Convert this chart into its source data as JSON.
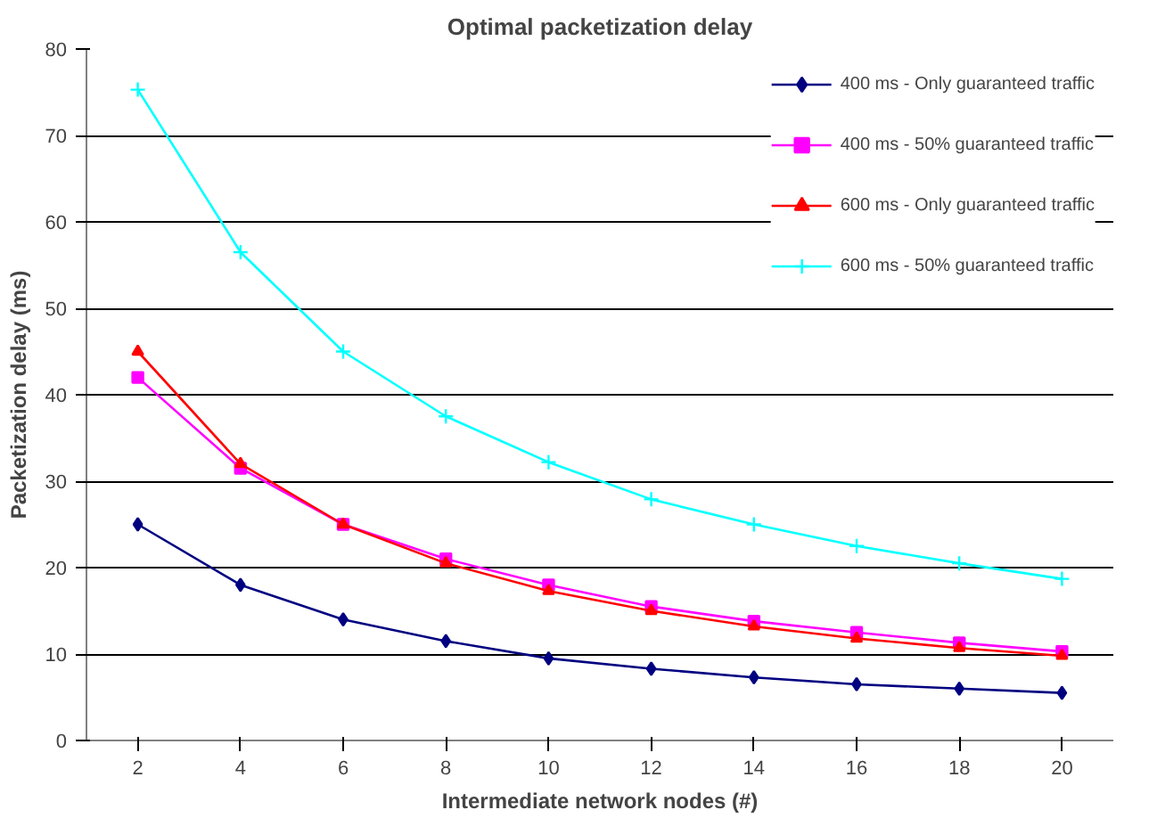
{
  "chart_data": {
    "type": "line",
    "title": "Optimal packetization delay",
    "xlabel": "Intermediate network nodes (#)",
    "ylabel": "Packetization delay (ms)",
    "categories": [
      "2",
      "4",
      "6",
      "8",
      "10",
      "12",
      "14",
      "16",
      "18",
      "20"
    ],
    "ylim": [
      0,
      80
    ],
    "yticks": [
      0,
      10,
      20,
      30,
      40,
      50,
      60,
      70,
      80
    ],
    "grid": "y",
    "legend": "top right",
    "line_style": "solid",
    "series": [
      {
        "name": "400 ms - Only guaranteed traffic",
        "color": "#000080",
        "marker": "diamond",
        "values": [
          25,
          18,
          14,
          11.5,
          9.5,
          8.3,
          7.3,
          6.5,
          6,
          5.5
        ]
      },
      {
        "name": "400 ms - 50% guaranteed traffic",
        "color": "#ff00ff",
        "marker": "square",
        "values": [
          42,
          31.5,
          25,
          21,
          18,
          15.5,
          13.8,
          12.5,
          11.3,
          10.3
        ]
      },
      {
        "name": "600 ms - Only guaranteed traffic",
        "color": "#ff0000",
        "marker": "triangle",
        "values": [
          45,
          32,
          25,
          20.5,
          17.3,
          15,
          13.2,
          11.8,
          10.7,
          9.8
        ]
      },
      {
        "name": "600 ms - 50% guaranteed traffic",
        "color": "#00ffff",
        "marker": "cross",
        "values": [
          75.3,
          56.5,
          45,
          37.5,
          32.2,
          27.9,
          25,
          22.5,
          20.5,
          18.7
        ]
      }
    ]
  }
}
